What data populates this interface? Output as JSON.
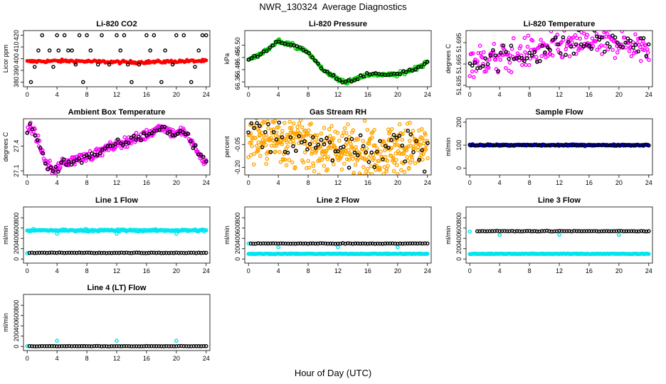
{
  "page": {
    "title": "NWR_130324  Average Diagnostics",
    "xlabel": "Hour of Day (UTC)"
  },
  "colors": {
    "black": "#000000",
    "red": "#ff0000",
    "green": "#00cc00",
    "magenta": "#ff00ff",
    "orange": "#ffa500",
    "blue": "#0000ff",
    "cyan": "#00e5ee"
  },
  "chart_data": [
    {
      "title": "Li-820 CO2",
      "type": "scatter",
      "ylabel": "Licor ppm",
      "xlim": [
        -0.5,
        24.5
      ],
      "ylim": [
        376,
        424
      ],
      "xticks": [
        "0",
        "4",
        "8",
        "12",
        "16",
        "20",
        "24"
      ],
      "yticks": [
        {
          "v": 380,
          "label": "380"
        },
        {
          "v": 390,
          "label": "390"
        },
        {
          "v": 400,
          "label": "400"
        },
        {
          "v": 410,
          "label": "410"
        },
        {
          "v": 420,
          "label": "420"
        }
      ],
      "series": [
        {
          "color": "red",
          "marker": "dot",
          "pattern": "flat",
          "x0": 0,
          "x1": 24,
          "n": 150,
          "base": 397.5,
          "amp": 0.5,
          "noise": 0.6
        },
        {
          "color": "black",
          "marker": "circle",
          "pattern": "points",
          "x": [
            0.5,
            2,
            3,
            4,
            5,
            6,
            7,
            8,
            10,
            11,
            12,
            13,
            14,
            16,
            17,
            18,
            20,
            21,
            22,
            23.5,
            24
          ],
          "y": [
            380,
            420,
            407,
            420,
            420,
            407,
            420,
            420,
            420,
            395,
            420,
            420,
            380,
            420,
            420,
            380,
            420,
            420,
            380,
            420,
            420
          ]
        },
        {
          "color": "black",
          "marker": "circle",
          "pattern": "points",
          "x": [
            1,
            1.5,
            3.5,
            4.2,
            5.5,
            6.5,
            7.5,
            8.5,
            9.5,
            12.5,
            13.5,
            15,
            16.5,
            18.5,
            19.5,
            22.5,
            23
          ],
          "y": [
            393,
            407,
            393,
            407,
            407,
            395,
            380,
            407,
            395,
            407,
            395,
            395,
            407,
            407,
            395,
            393,
            407
          ]
        }
      ]
    },
    {
      "title": "Li-820 Pressure",
      "type": "scatter",
      "ylabel": "kPa",
      "xlim": [
        -0.5,
        24.5
      ],
      "ylim": [
        66.33,
        66.56
      ],
      "xticks": [
        "0",
        "4",
        "8",
        "12",
        "16",
        "20",
        "24"
      ],
      "yticks": [
        {
          "v": 66.35,
          "label": "66.35"
        },
        {
          "v": 66.4,
          "label": "66.40"
        },
        {
          "v": 66.45,
          "label": "66.45"
        },
        {
          "v": 66.5,
          "label": "66.50"
        }
      ],
      "series": [
        {
          "color": "green",
          "marker": "circle",
          "pattern": "knots",
          "n": 200,
          "noise": 0.004,
          "knots": [
            [
              0,
              66.44
            ],
            [
              2,
              66.47
            ],
            [
              4,
              66.52
            ],
            [
              6,
              66.5
            ],
            [
              8,
              66.47
            ],
            [
              10,
              66.4
            ],
            [
              12,
              66.36
            ],
            [
              13,
              66.35
            ],
            [
              15,
              66.37
            ],
            [
              16,
              66.38
            ],
            [
              18,
              66.38
            ],
            [
              20,
              66.38
            ],
            [
              22,
              66.4
            ],
            [
              24,
              66.43
            ]
          ]
        },
        {
          "color": "black",
          "marker": "circle",
          "pattern": "knots",
          "n": 60,
          "noise": 0.004,
          "knots": [
            [
              0,
              66.44
            ],
            [
              2,
              66.47
            ],
            [
              4,
              66.52
            ],
            [
              6,
              66.5
            ],
            [
              8,
              66.47
            ],
            [
              10,
              66.4
            ],
            [
              12,
              66.36
            ],
            [
              13,
              66.35
            ],
            [
              15,
              66.37
            ],
            [
              16,
              66.38
            ],
            [
              18,
              66.38
            ],
            [
              20,
              66.38
            ],
            [
              22,
              66.4
            ],
            [
              24,
              66.43
            ]
          ]
        }
      ]
    },
    {
      "title": "Li-820 Temperature",
      "type": "scatter",
      "ylabel": "degrees C",
      "xlim": [
        -0.5,
        24.5
      ],
      "ylim": [
        51.633,
        51.712
      ],
      "xticks": [
        "0",
        "4",
        "8",
        "12",
        "16",
        "20",
        "24"
      ],
      "yticks": [
        {
          "v": 51.635,
          "label": "51.635"
        },
        {
          "v": 51.665,
          "label": "51.665"
        },
        {
          "v": 51.695,
          "label": "51.695"
        }
      ],
      "series": [
        {
          "color": "magenta",
          "marker": "circle",
          "pattern": "knots",
          "n": 230,
          "noise": 0.011,
          "knots": [
            [
              0,
              51.67
            ],
            [
              4,
              51.672
            ],
            [
              8,
              51.682
            ],
            [
              12,
              51.69
            ],
            [
              16,
              51.694
            ],
            [
              20,
              51.697
            ],
            [
              24,
              51.688
            ]
          ]
        },
        {
          "color": "black",
          "marker": "circle",
          "pattern": "knots",
          "n": 70,
          "noise": 0.009,
          "knots": [
            [
              0,
              51.67
            ],
            [
              4,
              51.672
            ],
            [
              8,
              51.682
            ],
            [
              12,
              51.69
            ],
            [
              16,
              51.694
            ],
            [
              20,
              51.697
            ],
            [
              24,
              51.688
            ]
          ]
        }
      ]
    },
    {
      "title": "Ambient Box Temperature",
      "type": "scatter",
      "ylabel": "degrees C",
      "xlim": [
        -0.5,
        24.5
      ],
      "ylim": [
        27.05,
        27.73
      ],
      "xticks": [
        "0",
        "4",
        "8",
        "12",
        "16",
        "20",
        "24"
      ],
      "yticks": [
        {
          "v": 27.1,
          "label": "27.1"
        },
        {
          "v": 27.4,
          "label": "27.4"
        }
      ],
      "series": [
        {
          "color": "magenta",
          "marker": "circle",
          "pattern": "knots",
          "n": 260,
          "noise": 0.03,
          "knots": [
            [
              0,
              27.55
            ],
            [
              0.5,
              27.65
            ],
            [
              1.5,
              27.45
            ],
            [
              2.5,
              27.2
            ],
            [
              3.5,
              27.1
            ],
            [
              5,
              27.2
            ],
            [
              7,
              27.25
            ],
            [
              9,
              27.3
            ],
            [
              11,
              27.38
            ],
            [
              13,
              27.45
            ],
            [
              15,
              27.5
            ],
            [
              17,
              27.58
            ],
            [
              18,
              27.65
            ],
            [
              19.5,
              27.55
            ],
            [
              21,
              27.58
            ],
            [
              22,
              27.45
            ],
            [
              23,
              27.3
            ],
            [
              24,
              27.2
            ]
          ]
        },
        {
          "color": "black",
          "marker": "circle",
          "pattern": "knots",
          "n": 70,
          "noise": 0.03,
          "knots": [
            [
              0,
              27.55
            ],
            [
              0.5,
              27.65
            ],
            [
              1.5,
              27.45
            ],
            [
              2.5,
              27.2
            ],
            [
              3.5,
              27.1
            ],
            [
              5,
              27.2
            ],
            [
              7,
              27.25
            ],
            [
              9,
              27.3
            ],
            [
              11,
              27.38
            ],
            [
              13,
              27.45
            ],
            [
              15,
              27.5
            ],
            [
              17,
              27.58
            ],
            [
              18,
              27.65
            ],
            [
              19.5,
              27.55
            ],
            [
              21,
              27.58
            ],
            [
              22,
              27.45
            ],
            [
              23,
              27.3
            ],
            [
              24,
              27.2
            ]
          ]
        }
      ]
    },
    {
      "title": "Gas Stream RH",
      "type": "scatter",
      "ylabel": "percent",
      "xlim": [
        -0.5,
        24.5
      ],
      "ylim": [
        -0.25,
        0.12
      ],
      "xticks": [
        "0",
        "4",
        "8",
        "12",
        "16",
        "20",
        "24"
      ],
      "yticks": [
        {
          "v": -0.2,
          "label": "-0.20"
        },
        {
          "v": -0.05,
          "label": "-0.05"
        }
      ],
      "series": [
        {
          "color": "orange",
          "marker": "circle",
          "pattern": "knots",
          "n": 480,
          "noise": 0.085,
          "knots": [
            [
              0,
              0.0
            ],
            [
              4,
              -0.01
            ],
            [
              8,
              -0.05
            ],
            [
              12,
              -0.09
            ],
            [
              16,
              -0.1
            ],
            [
              20,
              -0.08
            ],
            [
              24,
              -0.07
            ]
          ]
        },
        {
          "color": "black",
          "marker": "circle",
          "pattern": "knots",
          "n": 65,
          "noise": 0.06,
          "knots": [
            [
              0,
              0.0
            ],
            [
              4,
              -0.01
            ],
            [
              8,
              -0.05
            ],
            [
              12,
              -0.09
            ],
            [
              16,
              -0.1
            ],
            [
              20,
              -0.08
            ],
            [
              24,
              -0.07
            ]
          ]
        }
      ]
    },
    {
      "title": "Sample Flow",
      "type": "scatter",
      "ylabel": "ml/min",
      "xlim": [
        -0.5,
        24.5
      ],
      "ylim": [
        -30,
        215
      ],
      "xticks": [
        "0",
        "4",
        "8",
        "12",
        "16",
        "20",
        "24"
      ],
      "yticks": [
        {
          "v": 0,
          "label": "0"
        },
        {
          "v": 100,
          "label": "100"
        },
        {
          "v": 200,
          "label": "200"
        }
      ],
      "series": [
        {
          "color": "blue",
          "marker": "circle",
          "pattern": "flat",
          "x0": 0,
          "x1": 24,
          "n": 200,
          "base": 100,
          "amp": 0,
          "noise": 1.5
        },
        {
          "color": "black",
          "marker": "circle",
          "pattern": "flat",
          "x0": 0,
          "x1": 24,
          "n": 70,
          "base": 100,
          "amp": 0,
          "noise": 1.5
        }
      ]
    },
    {
      "title": "Line 1 Flow",
      "type": "scatter",
      "ylabel": "ml/min",
      "xlim": [
        -0.5,
        24.5
      ],
      "ylim": [
        -80,
        1010
      ],
      "xticks": [
        "0",
        "4",
        "8",
        "12",
        "16",
        "20",
        "24"
      ],
      "yticks": [
        {
          "v": 0,
          "label": "0"
        },
        {
          "v": 200,
          "label": "200"
        },
        {
          "v": 400,
          "label": "400"
        },
        {
          "v": 600,
          "label": "600"
        },
        {
          "v": 800,
          "label": "800"
        }
      ],
      "series": [
        {
          "color": "cyan",
          "marker": "circle",
          "pattern": "flat",
          "x0": 0,
          "x1": 24,
          "n": 230,
          "base": 555,
          "amp": 0,
          "noise": 10
        },
        {
          "color": "cyan",
          "marker": "circle",
          "pattern": "points",
          "x": [
            0,
            4,
            12,
            20
          ],
          "y": [
            110,
            490,
            490,
            490
          ]
        },
        {
          "color": "black",
          "marker": "circle",
          "pattern": "flat",
          "x0": 0.3,
          "x1": 24,
          "n": 72,
          "base": 120,
          "amp": 0,
          "noise": 3
        }
      ]
    },
    {
      "title": "Line 2 Flow",
      "type": "scatter",
      "ylabel": "ml/min",
      "xlim": [
        -0.5,
        24.5
      ],
      "ylim": [
        -80,
        1010
      ],
      "xticks": [
        "0",
        "4",
        "8",
        "12",
        "16",
        "20",
        "24"
      ],
      "yticks": [
        {
          "v": 0,
          "label": "0"
        },
        {
          "v": 200,
          "label": "200"
        },
        {
          "v": 400,
          "label": "400"
        },
        {
          "v": 600,
          "label": "600"
        },
        {
          "v": 800,
          "label": "800"
        }
      ],
      "series": [
        {
          "color": "cyan",
          "marker": "circle",
          "pattern": "flat",
          "x0": 0,
          "x1": 24,
          "n": 230,
          "base": 100,
          "amp": 0,
          "noise": 3
        },
        {
          "color": "cyan",
          "marker": "circle",
          "pattern": "points",
          "x": [
            0,
            4,
            12,
            20
          ],
          "y": [
            300,
            230,
            230,
            230
          ]
        },
        {
          "color": "black",
          "marker": "circle",
          "pattern": "flat",
          "x0": 0.3,
          "x1": 24,
          "n": 72,
          "base": 300,
          "amp": 0,
          "noise": 3
        }
      ]
    },
    {
      "title": "Line 3 Flow",
      "type": "scatter",
      "ylabel": "ml/min",
      "xlim": [
        -0.5,
        24.5
      ],
      "ylim": [
        -80,
        1010
      ],
      "xticks": [
        "0",
        "4",
        "8",
        "12",
        "16",
        "20",
        "24"
      ],
      "yticks": [
        {
          "v": 0,
          "label": "0"
        },
        {
          "v": 200,
          "label": "200"
        },
        {
          "v": 400,
          "label": "400"
        },
        {
          "v": 600,
          "label": "600"
        },
        {
          "v": 800,
          "label": "800"
        }
      ],
      "series": [
        {
          "color": "cyan",
          "marker": "circle",
          "pattern": "flat",
          "x0": 0,
          "x1": 24,
          "n": 230,
          "base": 100,
          "amp": 0,
          "noise": 3
        },
        {
          "color": "cyan",
          "marker": "circle",
          "pattern": "points",
          "x": [
            0,
            4,
            12,
            20
          ],
          "y": [
            530,
            470,
            470,
            470
          ]
        },
        {
          "color": "black",
          "marker": "circle",
          "pattern": "flat",
          "x0": 1,
          "x1": 24,
          "n": 70,
          "base": 540,
          "amp": 0,
          "noise": 3
        }
      ]
    },
    {
      "title": "Line 4 (LT) Flow",
      "type": "scatter",
      "ylabel": "ml/min",
      "xlim": [
        -0.5,
        24.5
      ],
      "ylim": [
        -80,
        1010
      ],
      "xticks": [
        "0",
        "4",
        "8",
        "12",
        "16",
        "20",
        "24"
      ],
      "yticks": [
        {
          "v": 0,
          "label": "0"
        },
        {
          "v": 200,
          "label": "200"
        },
        {
          "v": 400,
          "label": "400"
        },
        {
          "v": 600,
          "label": "600"
        },
        {
          "v": 800,
          "label": "800"
        }
      ],
      "series": [
        {
          "color": "cyan",
          "marker": "circle",
          "pattern": "points",
          "x": [
            0,
            4,
            12,
            20
          ],
          "y": [
            5,
            110,
            110,
            110
          ]
        },
        {
          "color": "black",
          "marker": "circle",
          "pattern": "flat",
          "x0": 0.3,
          "x1": 24,
          "n": 72,
          "base": 5,
          "amp": 0,
          "noise": 2
        }
      ]
    }
  ]
}
